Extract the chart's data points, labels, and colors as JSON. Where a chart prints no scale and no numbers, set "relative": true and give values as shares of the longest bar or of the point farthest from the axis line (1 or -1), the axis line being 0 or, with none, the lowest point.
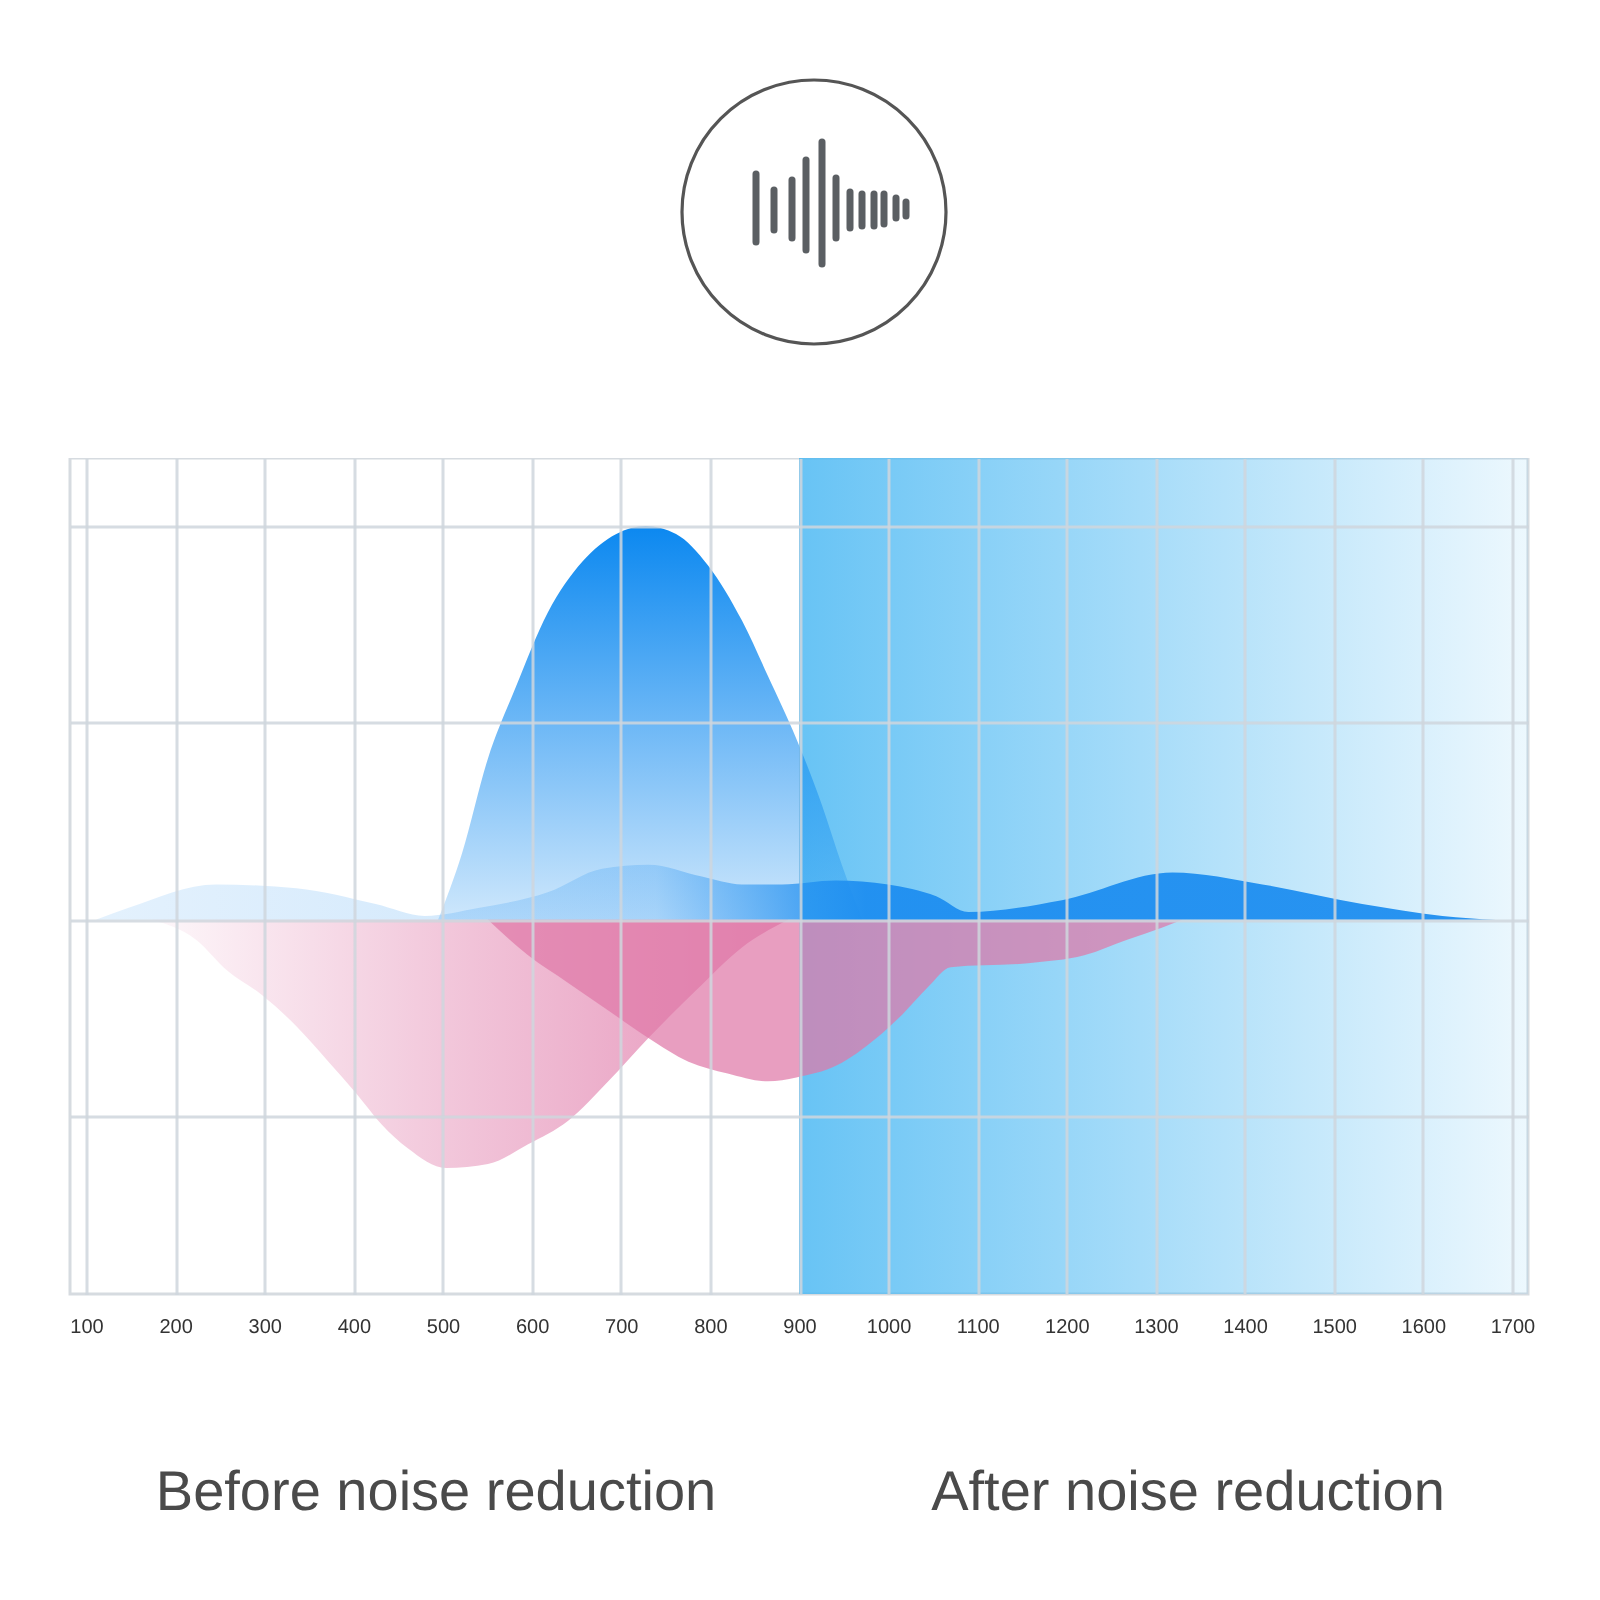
{
  "chart_data": {
    "type": "area",
    "relative": true,
    "xlim": [
      82,
      1718
    ],
    "xticks": [
      100,
      200,
      300,
      400,
      500,
      600,
      700,
      800,
      900,
      {
        "value": 1000,
        "label": "1000"
      },
      {
        "value": 1100,
        "label": "1100"
      },
      {
        "value": 1200,
        "label": "1200"
      },
      {
        "value": 1300,
        "label": "1300"
      },
      {
        "value": 1400,
        "label": "1400"
      },
      {
        "value": 1500,
        "label": "1500"
      },
      {
        "value": 1600,
        "label": "1600"
      },
      {
        "value": 1700,
        "label": "1700"
      }
    ],
    "grid": true,
    "bands": [
      {
        "axis": "x",
        "from": 900,
        "to": 1718,
        "color": "#4db9f3"
      }
    ],
    "annotations": [
      "Before noise reduction",
      "After noise reduction"
    ],
    "series": [
      {
        "color": "#e07aa9",
        "x": [
          174,
          223,
          259,
          297,
          336,
          372,
          403,
          432,
          461,
          504,
          551,
          596,
          641,
          686,
          731,
          784,
          836,
          888
        ],
        "values": [
          0,
          -0.05,
          -0.13,
          -0.19,
          -0.27,
          -0.36,
          -0.44,
          -0.52,
          -0.58,
          -0.63,
          -0.62,
          -0.57,
          -0.51,
          -0.41,
          -0.3,
          -0.18,
          -0.07,
          0
        ]
      },
      {
        "color": "#df78a8",
        "x": [
          551,
          596,
          641,
          686,
          731,
          776,
          820,
          865,
          897,
          942,
          987,
          1016,
          1045,
          1070,
          1157,
          1220,
          1269,
          1307,
          1330
        ],
        "values": [
          0,
          -0.09,
          -0.16,
          -0.23,
          -0.3,
          -0.36,
          -0.39,
          -0.41,
          -0.4,
          -0.37,
          -0.3,
          -0.24,
          -0.17,
          -0.12,
          -0.11,
          -0.09,
          -0.05,
          -0.02,
          0
        ]
      },
      {
        "color": "#0b88f0",
        "x": [
          495,
          522,
          551,
          582,
          618,
          657,
          695,
          728,
          762,
          798,
          836,
          865,
          897,
          926,
          948,
          971
        ],
        "values": [
          0,
          0.17,
          0.41,
          0.59,
          0.78,
          0.91,
          0.98,
          1,
          0.98,
          0.9,
          0.76,
          0.62,
          0.46,
          0.29,
          0.14,
          0
        ]
      },
      {
        "color": "#1e8ef0",
        "x": [
          111,
          147,
          246,
          336,
          425,
          480,
          540,
          618,
          679,
          731,
          791,
          836,
          881,
          941,
          1000,
          1054,
          1090,
          1195,
          1319,
          1420,
          1532,
          1622,
          1682
        ],
        "values": [
          0,
          0.03,
          0.09,
          0.08,
          0.04,
          0.01,
          0.03,
          0.07,
          0.13,
          0.14,
          0.11,
          0.09,
          0.09,
          0.1,
          0.09,
          0.06,
          0.02,
          0.05,
          0.12,
          0.09,
          0.04,
          0.01,
          0
        ]
      }
    ]
  }
}
